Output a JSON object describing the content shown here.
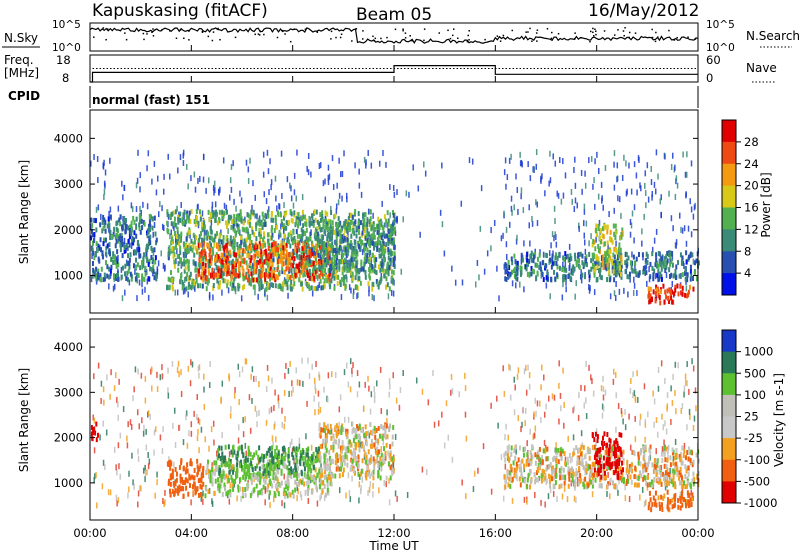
{
  "header": {
    "station": "Kapuskasing (fitACF)",
    "beam": "Beam 05",
    "date": "16/May/2012",
    "cpid_label": "CPID",
    "cpid_value": "normal (fast) 151"
  },
  "noise_panel": {
    "left_label": "N.Sky",
    "right_label": "N.Search",
    "left_ticks": [
      "10^5",
      "10^0"
    ],
    "right_ticks": [
      "10^5",
      "10^0"
    ]
  },
  "freq_panel": {
    "left_label_1": "Freq.",
    "left_label_2": "[MHz]",
    "right_label": "Nave",
    "left_ticks": [
      "18",
      "8"
    ],
    "right_ticks": [
      "60",
      "0"
    ]
  },
  "chart_data": [
    {
      "type": "heatmap",
      "panel": "power",
      "ylabel": "Slant Range [km]",
      "xlabel": "Time UT",
      "x_ticks": [
        "00:00",
        "04:00",
        "08:00",
        "12:00",
        "16:00",
        "20:00",
        "00:00"
      ],
      "xlim_hours": [
        0,
        24
      ],
      "y_ticks": [
        1000,
        2000,
        3000,
        4000
      ],
      "ylim": [
        180,
        4620
      ],
      "colorbar": {
        "label": "Power [dB]",
        "ticks": [
          "4",
          "8",
          "12",
          "16",
          "20",
          "24",
          "28"
        ],
        "range": [
          0,
          30
        ],
        "colors": [
          "#0010e8",
          "#2850b0",
          "#3a8a78",
          "#52b050",
          "#d8c818",
          "#f39a10",
          "#ef4a14",
          "#e00000"
        ]
      },
      "echo_regions": [
        {
          "t0": 0.0,
          "t1": 2.6,
          "r0": 900,
          "r1": 2300,
          "level": 8
        },
        {
          "t0": 3.0,
          "t1": 12.0,
          "r0": 700,
          "r1": 2400,
          "level": 12
        },
        {
          "t0": 4.2,
          "t1": 9.5,
          "r0": 900,
          "r1": 1700,
          "level": 24
        },
        {
          "t0": 8.5,
          "t1": 12.0,
          "r0": 1100,
          "r1": 2200,
          "level": 10
        },
        {
          "t0": 16.3,
          "t1": 24.0,
          "r0": 900,
          "r1": 1500,
          "level": 8
        },
        {
          "t0": 19.8,
          "t1": 21.0,
          "r0": 1000,
          "r1": 2100,
          "level": 16
        },
        {
          "t0": 22.0,
          "t1": 23.8,
          "r0": 400,
          "r1": 800,
          "level": 26
        }
      ]
    },
    {
      "type": "heatmap",
      "panel": "velocity",
      "ylabel": "Slant Range [km]",
      "xlabel": "Time UT",
      "x_ticks": [
        "00:00",
        "04:00",
        "08:00",
        "12:00",
        "16:00",
        "20:00",
        "00:00"
      ],
      "xlim_hours": [
        0,
        24
      ],
      "y_ticks": [
        1000,
        2000,
        3000,
        4000
      ],
      "ylim": [
        180,
        4620
      ],
      "colorbar": {
        "label": "Velocity [m s-1]",
        "ticks": [
          "1000",
          "500",
          "100",
          "25",
          "-25",
          "-100",
          "-500",
          "-1000"
        ],
        "colors": [
          "#1838c8",
          "#2a7a5a",
          "#5cc030",
          "#c0c0b8",
          "#c8c8c8",
          "#f3a020",
          "#f06010",
          "#e00000"
        ]
      },
      "echo_regions": [
        {
          "t0": 0.0,
          "t1": 0.3,
          "r0": 1900,
          "r1": 2300,
          "velocity": -1000
        },
        {
          "t0": 3.0,
          "t1": 4.5,
          "r0": 700,
          "r1": 1500,
          "velocity": -300
        },
        {
          "t0": 4.5,
          "t1": 9.5,
          "r0": 700,
          "r1": 1500,
          "velocity": 100
        },
        {
          "t0": 5.0,
          "t1": 9.0,
          "r0": 1200,
          "r1": 1800,
          "velocity": 500
        },
        {
          "t0": 9.0,
          "t1": 12.0,
          "r0": 1100,
          "r1": 2300,
          "velocity": 0
        },
        {
          "t0": 16.3,
          "t1": 24.0,
          "r0": 900,
          "r1": 1800,
          "velocity": 0
        },
        {
          "t0": 19.8,
          "t1": 21.0,
          "r0": 1100,
          "r1": 2100,
          "velocity": -1000
        },
        {
          "t0": 22.0,
          "t1": 23.8,
          "r0": 400,
          "r1": 800,
          "velocity": -200
        }
      ]
    }
  ]
}
